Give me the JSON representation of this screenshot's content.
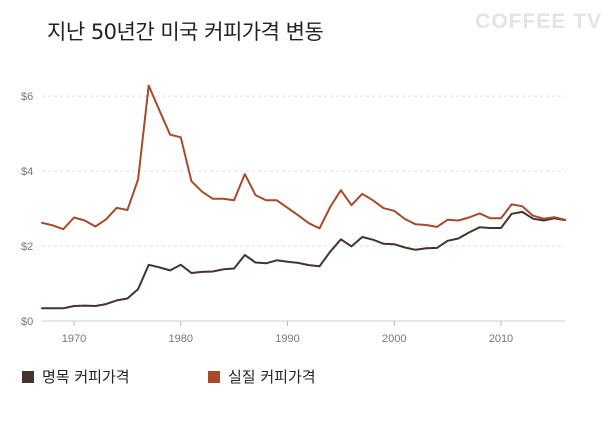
{
  "title": "지난 50년간 미국 커피가격 변동",
  "watermark": "COFFEE TV",
  "chart_data": {
    "type": "line",
    "title": "지난 50년간 미국 커피가격 변동",
    "xlabel": "",
    "ylabel": "",
    "xlim": [
      1967,
      2016
    ],
    "ylim": [
      0,
      7
    ],
    "x_ticks": [
      1970,
      1980,
      1990,
      2000,
      2010
    ],
    "x_tick_labels": [
      "1970",
      "1980",
      "1990",
      "2000",
      "2010"
    ],
    "y_ticks": [
      0,
      2,
      4,
      6
    ],
    "y_tick_labels": [
      "$0",
      "$2",
      "$4",
      "$6"
    ],
    "grid": "horizontal dashed",
    "legend_position": "bottom",
    "x": [
      1967,
      1968,
      1969,
      1970,
      1971,
      1972,
      1973,
      1974,
      1975,
      1976,
      1977,
      1978,
      1979,
      1980,
      1981,
      1982,
      1983,
      1984,
      1985,
      1986,
      1987,
      1988,
      1989,
      1990,
      1991,
      1992,
      1993,
      1994,
      1995,
      1996,
      1997,
      1998,
      1999,
      2000,
      2001,
      2002,
      2003,
      2004,
      2005,
      2006,
      2007,
      2008,
      2009,
      2010,
      2011,
      2012,
      2013,
      2014,
      2015,
      2016
    ],
    "series": [
      {
        "name": "명목 커피가격",
        "color": "#45332d",
        "values": [
          0.34,
          0.34,
          0.34,
          0.4,
          0.41,
          0.4,
          0.45,
          0.55,
          0.6,
          0.85,
          1.5,
          1.43,
          1.35,
          1.5,
          1.28,
          1.31,
          1.32,
          1.38,
          1.4,
          1.76,
          1.56,
          1.54,
          1.62,
          1.58,
          1.55,
          1.49,
          1.46,
          1.85,
          2.18,
          1.99,
          2.24,
          2.17,
          2.06,
          2.05,
          1.96,
          1.9,
          1.94,
          1.95,
          2.14,
          2.2,
          2.36,
          2.5,
          2.48,
          2.48,
          2.86,
          2.91,
          2.73,
          2.68,
          2.74,
          2.69
        ]
      },
      {
        "name": "실질 커피가격",
        "color": "#a64a2b",
        "values": [
          2.62,
          2.55,
          2.45,
          2.76,
          2.68,
          2.52,
          2.71,
          3.02,
          2.96,
          3.78,
          6.28,
          5.62,
          4.97,
          4.9,
          3.73,
          3.45,
          3.26,
          3.26,
          3.22,
          3.92,
          3.36,
          3.22,
          3.22,
          3.02,
          2.82,
          2.61,
          2.47,
          3.04,
          3.49,
          3.09,
          3.39,
          3.22,
          3.01,
          2.94,
          2.72,
          2.58,
          2.56,
          2.51,
          2.7,
          2.68,
          2.76,
          2.87,
          2.74,
          2.74,
          3.11,
          3.06,
          2.81,
          2.73,
          2.77,
          2.7
        ]
      }
    ]
  }
}
